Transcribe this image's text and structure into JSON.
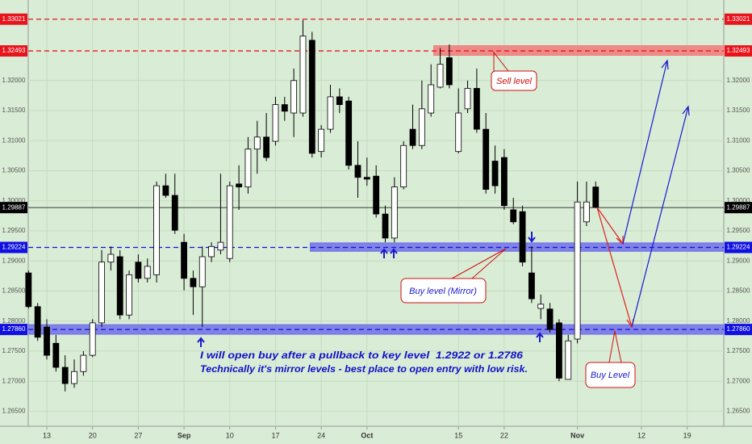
{
  "chart_data": {
    "type": "candlestick",
    "x": [
      -2,
      -1,
      0,
      1,
      2,
      3,
      4,
      5,
      6,
      7,
      8,
      9,
      10,
      11,
      12,
      13,
      14,
      15,
      16,
      17,
      18,
      19,
      20,
      21,
      22,
      23,
      24,
      25,
      26,
      27,
      28,
      29,
      30,
      31,
      32,
      33,
      34,
      35,
      36,
      37,
      38,
      39,
      40,
      41,
      42,
      43,
      44,
      45,
      46,
      47,
      48,
      49,
      50,
      51,
      52,
      53,
      54,
      55,
      56,
      57,
      58,
      59,
      60
    ],
    "open": [
      1.288,
      1.2824,
      1.279,
      1.2763,
      1.2723,
      1.2696,
      1.2716,
      1.2743,
      1.2797,
      1.2898,
      1.2907,
      1.281,
      1.2898,
      1.2871,
      1.2877,
      1.3025,
      1.3009,
      1.2931,
      1.2871,
      1.2857,
      1.2907,
      1.2918,
      1.2904,
      1.3028,
      1.3023,
      1.3086,
      1.3106,
      1.3099,
      1.316,
      1.3146,
      1.3146,
      1.3267,
      1.3082,
      1.3119,
      1.3173,
      1.3166,
      1.3059,
      1.3039,
      1.3041,
      1.2978,
      1.2938,
      1.3023,
      1.3119,
      1.3092,
      1.3146,
      1.3189,
      1.3238,
      1.3082,
      1.3153,
      1.3187,
      1.3119,
      1.3066,
      1.3072,
      1.2985,
      1.2982,
      1.288,
      1.2821,
      1.282,
      1.2797,
      1.2703,
      1.277,
      1.2965,
      1.3023
    ],
    "high": [
      1.2884,
      1.283,
      1.2803,
      1.2777,
      1.2743,
      1.2736,
      1.275,
      1.2803,
      1.2918,
      1.2924,
      1.2918,
      1.2884,
      1.2911,
      1.2904,
      1.3032,
      1.3045,
      1.3045,
      1.2945,
      1.2884,
      1.2924,
      1.2931,
      1.3045,
      1.3032,
      1.3059,
      1.3106,
      1.3133,
      1.3146,
      1.3173,
      1.3173,
      1.322,
      1.3301,
      1.3281,
      1.3126,
      1.3193,
      1.3187,
      1.3173,
      1.3099,
      1.3072,
      1.3059,
      1.2992,
      1.3039,
      1.3099,
      1.316,
      1.32,
      1.3227,
      1.3254,
      1.326,
      1.3187,
      1.32,
      1.322,
      1.3146,
      1.3092,
      1.3086,
      1.3005,
      1.2992,
      1.2924,
      1.2844,
      1.283,
      1.2803,
      1.2777,
      1.3032,
      1.3032,
      1.3032
    ],
    "low": [
      1.2821,
      1.2767,
      1.2736,
      1.2716,
      1.2683,
      1.2689,
      1.2709,
      1.274,
      1.279,
      1.2884,
      1.2803,
      1.2803,
      1.2864,
      1.2864,
      1.2864,
      1.3005,
      1.2945,
      1.2851,
      1.281,
      1.279,
      1.2898,
      1.2911,
      1.2898,
      1.2985,
      1.3012,
      1.3045,
      1.3066,
      1.3092,
      1.3133,
      1.3106,
      1.314,
      1.3072,
      1.3072,
      1.3113,
      1.3146,
      1.3052,
      1.3005,
      1.3025,
      1.2972,
      1.2931,
      1.2931,
      1.3019,
      1.3086,
      1.3086,
      1.314,
      1.3187,
      1.3187,
      1.3079,
      1.3146,
      1.3113,
      1.3012,
      1.3012,
      1.2985,
      1.2961,
      1.2891,
      1.283,
      1.2803,
      1.2781,
      1.27,
      1.2703,
      1.2763,
      1.2958,
      1.2988
    ],
    "close": [
      1.2824,
      1.2773,
      1.2743,
      1.2723,
      1.2696,
      1.2716,
      1.2743,
      1.2797,
      1.2898,
      1.2911,
      1.281,
      1.2877,
      1.2871,
      1.2891,
      1.3025,
      1.3009,
      1.2951,
      1.2871,
      1.2857,
      1.2907,
      1.2924,
      1.2931,
      1.3025,
      1.3023,
      1.3086,
      1.3106,
      1.3072,
      1.316,
      1.3149,
      1.32,
      1.3274,
      1.3079,
      1.3119,
      1.3173,
      1.316,
      1.3059,
      1.3039,
      1.3036,
      1.2978,
      1.2938,
      1.3023,
      1.3092,
      1.3092,
      1.3153,
      1.3193,
      1.3227,
      1.3193,
      1.3146,
      1.3187,
      1.3119,
      1.3019,
      1.3025,
      1.2992,
      1.2965,
      1.2898,
      1.2837,
      1.2828,
      1.2786,
      1.2705,
      1.2767,
      1.2998,
      1.2998,
      1.2989
    ],
    "xlim": [
      -2.03,
      74.0
    ],
    "ylim": [
      1.2625,
      1.3334
    ],
    "xticks": [
      {
        "value": 0,
        "label": "13"
      },
      {
        "value": 5,
        "label": "20"
      },
      {
        "value": 10,
        "label": "27"
      },
      {
        "value": 15,
        "label": "Sep"
      },
      {
        "value": 20,
        "label": "10"
      },
      {
        "value": 25,
        "label": "17"
      },
      {
        "value": 30,
        "label": "24"
      },
      {
        "value": 35,
        "label": "Oct"
      },
      {
        "value": 45,
        "label": "15"
      },
      {
        "value": 50,
        "label": "22"
      },
      {
        "value": 58,
        "label": "Nov"
      },
      {
        "value": 65,
        "label": "12"
      },
      {
        "value": 70,
        "label": "19"
      }
    ],
    "yticks": [
      {
        "value": 1.32,
        "label": "1.32000"
      },
      {
        "value": 1.315,
        "label": "1.31500"
      },
      {
        "value": 1.31,
        "label": "1.31000"
      },
      {
        "value": 1.305,
        "label": "1.30500"
      },
      {
        "value": 1.3,
        "label": "1.30000"
      },
      {
        "value": 1.295,
        "label": "1.29500"
      },
      {
        "value": 1.29,
        "label": "1.29000"
      },
      {
        "value": 1.285,
        "label": "1.28500"
      },
      {
        "value": 1.28,
        "label": "1.28000"
      },
      {
        "value": 1.275,
        "label": "1.27500"
      },
      {
        "value": 1.27,
        "label": "1.27000"
      },
      {
        "value": 1.265,
        "label": "1.26500"
      }
    ],
    "grid": true,
    "colors": {
      "up": "#ffffff",
      "down": "#000000",
      "background": "#d9ecd5"
    },
    "levels": [
      {
        "value": 1.33021,
        "color": "#e8141c",
        "style": "dashed"
      },
      {
        "value": 1.32493,
        "color": "#e8141c",
        "style": "dashed"
      },
      {
        "value": 1.29887,
        "color": "#000000",
        "style": "solid"
      },
      {
        "value": 1.29224,
        "label": "1.29224",
        "color": "#1010e0",
        "style": "dashed"
      },
      {
        "value": 1.2786,
        "label": "1.27860",
        "color": "#1010e0",
        "style": "dashed"
      }
    ],
    "zones": [
      {
        "y": [
          1.3242,
          1.3258
        ],
        "x_start": 42.3,
        "color": "#f07a7a"
      },
      {
        "y": [
          1.2916,
          1.293
        ],
        "x_start": 28.8,
        "color": "#7070e8"
      },
      {
        "y": [
          1.2778,
          1.2794
        ],
        "x_start": -2.03,
        "color": "#7070e8"
      }
    ],
    "annotations": [
      "Sell level",
      "Buy level (Mirror)",
      "Buy Level",
      "I will open buy after a pullback to key level  1.2922 or 1.2786",
      "Technically it's mirror levels - best place to open entry with low risk."
    ]
  }
}
